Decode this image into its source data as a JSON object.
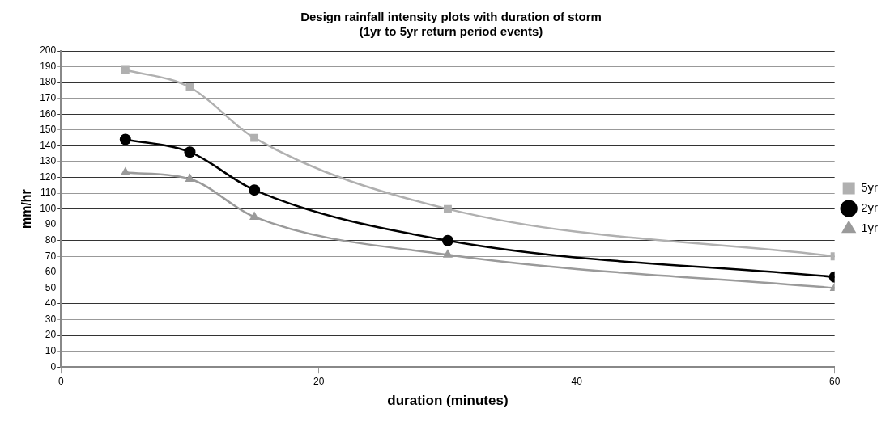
{
  "chart_data": {
    "type": "line",
    "title": "Design rainfall intensity plots with duration of storm",
    "subtitle": "(1yr to 5yr return period events)",
    "xlabel": "duration (minutes)",
    "ylabel": "mm/hr",
    "x": [
      5,
      10,
      15,
      30,
      60
    ],
    "series": [
      {
        "name": "5yr",
        "color": "#b0b0b0",
        "marker": "square",
        "values": [
          188,
          177,
          145,
          100,
          70
        ]
      },
      {
        "name": "2yr",
        "color": "#000000",
        "marker": "circle",
        "values": [
          144,
          136,
          112,
          80,
          57
        ]
      },
      {
        "name": "1yr",
        "color": "#9a9a9a",
        "marker": "triangle",
        "values": [
          123,
          119,
          95,
          71,
          50
        ]
      }
    ],
    "xlim": [
      0,
      60
    ],
    "xticks": [
      0,
      20,
      40,
      60
    ],
    "ylim": [
      0,
      200
    ],
    "yticks": [
      0,
      10,
      20,
      30,
      40,
      50,
      60,
      70,
      80,
      90,
      100,
      110,
      120,
      130,
      140,
      150,
      160,
      170,
      180,
      190,
      200
    ],
    "grid": "y",
    "legend": "right"
  }
}
